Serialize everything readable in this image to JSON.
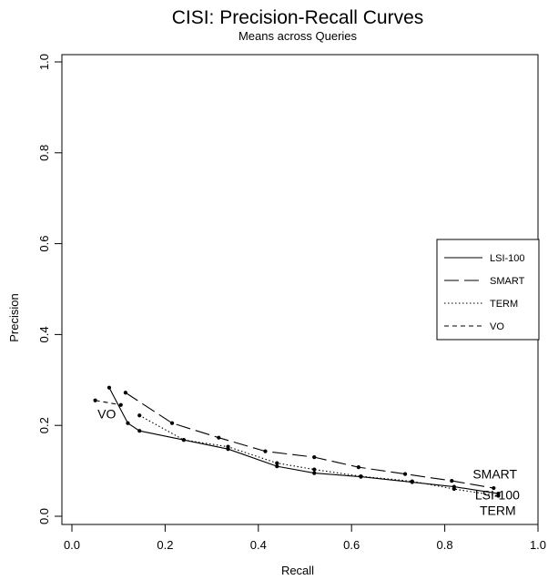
{
  "chart_data": {
    "type": "line",
    "title": "CISI: Precision-Recall Curves",
    "subtitle": "Means across Queries",
    "xlabel": "Recall",
    "ylabel": "Precision",
    "xlim": [
      0.0,
      1.0
    ],
    "ylim": [
      0.0,
      1.0
    ],
    "xticks": [
      "0.0",
      "0.2",
      "0.4",
      "0.6",
      "0.8",
      "1.0"
    ],
    "yticks": [
      "0.0",
      "0.2",
      "0.4",
      "0.6",
      "0.8",
      "1.0"
    ],
    "grid": false,
    "legend_position": "right",
    "series": [
      {
        "name": "LSI-100",
        "style": "solid",
        "x": [
          0.08,
          0.12,
          0.145,
          0.24,
          0.335,
          0.44,
          0.52,
          0.62,
          0.73,
          0.82,
          0.915
        ],
        "y": [
          0.283,
          0.205,
          0.188,
          0.168,
          0.148,
          0.11,
          0.095,
          0.087,
          0.075,
          0.065,
          0.05
        ]
      },
      {
        "name": "SMART",
        "style": "longdash",
        "x": [
          0.115,
          0.215,
          0.315,
          0.415,
          0.52,
          0.615,
          0.715,
          0.815,
          0.905
        ],
        "y": [
          0.272,
          0.205,
          0.173,
          0.143,
          0.13,
          0.108,
          0.093,
          0.078,
          0.062
        ]
      },
      {
        "name": "TERM",
        "style": "dotted",
        "x": [
          0.145,
          0.24,
          0.335,
          0.44,
          0.52,
          0.62,
          0.73,
          0.82,
          0.915
        ],
        "y": [
          0.222,
          0.168,
          0.153,
          0.117,
          0.103,
          0.088,
          0.077,
          0.06,
          0.045
        ]
      },
      {
        "name": "VO",
        "style": "shortdash",
        "x": [
          0.05,
          0.105
        ],
        "y": [
          0.255,
          0.245
        ]
      }
    ],
    "annotations": [
      {
        "text": "VO",
        "x": 0.055,
        "y": 0.215
      },
      {
        "text": "SMART",
        "x": 0.86,
        "y": 0.083
      },
      {
        "text": "LSI-100",
        "x": 0.865,
        "y": 0.037
      },
      {
        "text": "TERM",
        "x": 0.875,
        "y": 0.003
      }
    ]
  }
}
